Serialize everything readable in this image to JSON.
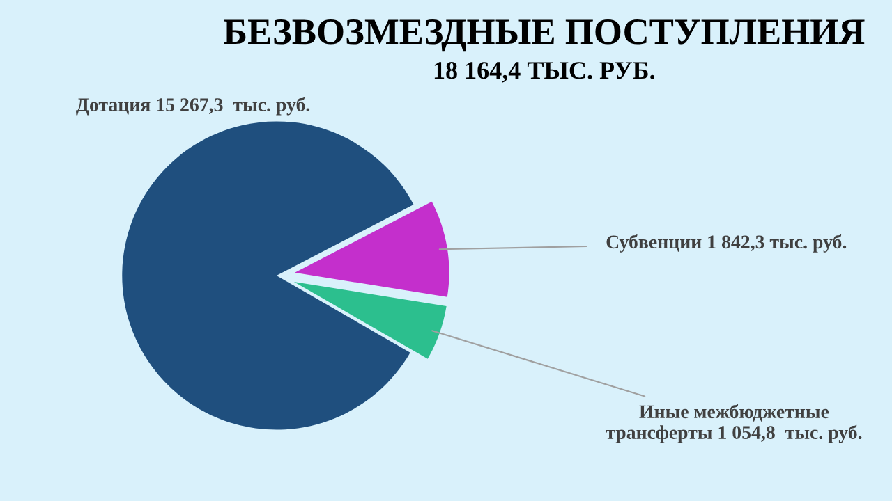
{
  "chart_data": {
    "type": "pie",
    "title": "БЕЗВОЗМЕЗДНЫЕ ПОСТУПЛЕНИЯ",
    "subtitle": "18 164,4 ТЫС. РУБ.",
    "categories": [
      "Дотация",
      "Субвенции",
      "Иные межбюджетные\nтрансферты"
    ],
    "values": [
      15267.3,
      1842.3,
      1054.8
    ],
    "value_labels": [
      "15 267,3  тыс. руб.",
      "1 842,3 тыс. руб.",
      "1 054,8  тыс. руб."
    ],
    "colors": [
      "#1f4f7e",
      "#c42fcc",
      "#2cbf8e"
    ]
  }
}
